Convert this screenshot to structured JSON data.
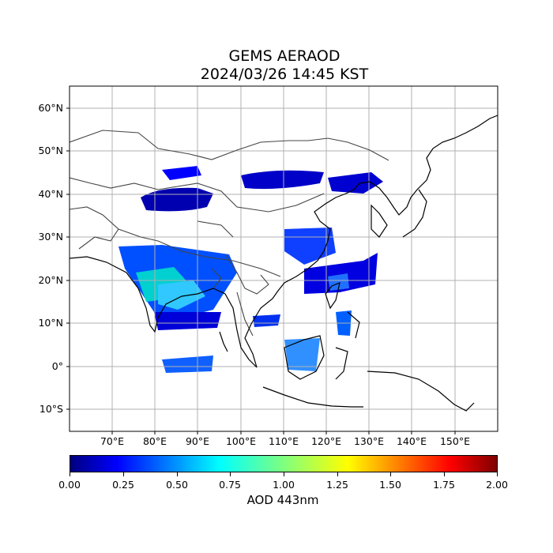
{
  "title": {
    "line1": "GEMS AERAOD",
    "line2": "2024/03/26 14:45 KST"
  },
  "map": {
    "projection": "PlateCarree",
    "lon_range": [
      60,
      160
    ],
    "lat_range": [
      -15,
      65
    ],
    "lat_labels": [
      "60°N",
      "50°N",
      "40°N",
      "30°N",
      "20°N",
      "10°N",
      "0°",
      "10°S"
    ],
    "lon_labels": [
      "70°E",
      "80°E",
      "90°E",
      "100°E",
      "110°E",
      "120°E",
      "130°E",
      "140°E",
      "150°E"
    ],
    "grid": true,
    "colors": {
      "coastline": "#000000",
      "borders": "#444444",
      "gridlines": "#b0b0b0"
    }
  },
  "colorbar": {
    "colormap": "jet",
    "ticks": [
      "0.00",
      "0.25",
      "0.50",
      "0.75",
      "1.00",
      "1.25",
      "1.50",
      "1.75",
      "2.00"
    ],
    "range": [
      0,
      2
    ],
    "label": "AOD 443nm"
  }
}
